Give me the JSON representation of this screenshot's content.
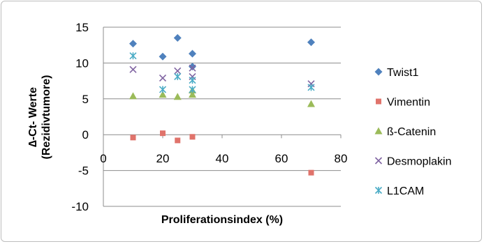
{
  "chart_data": {
    "type": "scatter",
    "title": "",
    "xlabel": "Proliferationsindex (%)",
    "ylabel_line1": "∆-Ct- Werte",
    "ylabel_line2": "(Rezidivtumore)",
    "xlim": [
      0,
      80
    ],
    "ylim": [
      -10,
      15
    ],
    "x_ticks": [
      0,
      20,
      40,
      60,
      80
    ],
    "y_ticks": [
      -10,
      -5,
      0,
      5,
      10,
      15
    ],
    "grid": "horizontal major",
    "legend_position": "right",
    "series": [
      {
        "name": "Twist1",
        "marker": "diamond",
        "color": "#4F81BD",
        "points": [
          [
            10,
            12.7
          ],
          [
            20,
            10.9
          ],
          [
            25,
            13.5
          ],
          [
            30,
            11.3
          ],
          [
            30,
            9.5
          ],
          [
            70,
            12.9
          ]
        ]
      },
      {
        "name": "Vimentin",
        "marker": "square",
        "color": "#E0736B",
        "points": [
          [
            10,
            -0.4
          ],
          [
            20,
            0.2
          ],
          [
            25,
            -0.8
          ],
          [
            30,
            -0.3
          ],
          [
            70,
            -5.3
          ]
        ]
      },
      {
        "name": "ß-Catenin",
        "marker": "triangle",
        "color": "#9BBB59",
        "points": [
          [
            10,
            5.4
          ],
          [
            20,
            5.6
          ],
          [
            25,
            5.3
          ],
          [
            30,
            5.6
          ],
          [
            30,
            6.2
          ],
          [
            70,
            4.3
          ]
        ]
      },
      {
        "name": "Desmoplakin",
        "marker": "x",
        "color": "#8064A2",
        "points": [
          [
            10,
            9.1
          ],
          [
            20,
            7.9
          ],
          [
            25,
            8.9
          ],
          [
            30,
            9.3
          ],
          [
            30,
            8.1
          ],
          [
            70,
            7.1
          ]
        ]
      },
      {
        "name": "L1CAM",
        "marker": "star",
        "color": "#4BACC6",
        "points": [
          [
            10,
            11.0
          ],
          [
            20,
            6.3
          ],
          [
            25,
            8.1
          ],
          [
            30,
            7.6
          ],
          [
            30,
            6.3
          ],
          [
            70,
            6.6
          ]
        ]
      }
    ]
  }
}
